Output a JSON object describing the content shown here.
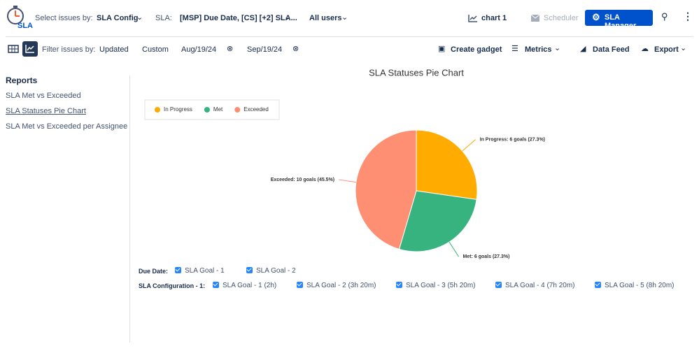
{
  "logo": "SLA",
  "toolbar": {
    "select_label": "Select issues by:",
    "select_value": "SLA Config",
    "sla_label": "SLA:",
    "sla_value": "[MSP] Due Date, [CS] [+2] SLA...",
    "users": "All users",
    "chart": "chart 1",
    "scheduler": "Scheduler",
    "manager": "SLA Manager"
  },
  "filter_bar": {
    "label": "Filter issues by:",
    "updated": "Updated",
    "custom": "Custom",
    "from": "Aug/19/24",
    "to": "Sep/19/24",
    "create_gadget": "Create gadget",
    "metrics": "Metrics",
    "data_feed": "Data Feed",
    "export": "Export"
  },
  "sidebar": {
    "title": "Reports",
    "items": [
      "SLA Met vs Exceeded",
      "SLA Statuses Pie Chart",
      "SLA Met vs Exceeded per Assignee"
    ]
  },
  "chart_data": {
    "type": "pie",
    "title": "SLA Statuses Pie Chart",
    "categories": [
      "In Progress",
      "Met",
      "Exceeded"
    ],
    "values": [
      6,
      6,
      10
    ],
    "value_labels": [
      "In Progress: 6 goals (27.3%)",
      "Met: 6 goals (27.3%)",
      "Exceeded: 10 goals (45.5%)"
    ],
    "colors": [
      "#ffab00",
      "#36b37e",
      "#ff8f73"
    ]
  },
  "goals": {
    "due_date": {
      "label": "Due Date:",
      "items": [
        "SLA Goal - 1",
        "SLA Goal - 2"
      ]
    },
    "sla_config": {
      "label": "SLA Configuration - 1:",
      "items": [
        "SLA Goal - 1 (2h)",
        "SLA Goal - 2 (3h 20m)",
        "SLA Goal - 3 (5h 20m)",
        "SLA Goal - 4 (7h 20m)",
        "SLA Goal - 5 (8h 20m)"
      ]
    }
  }
}
